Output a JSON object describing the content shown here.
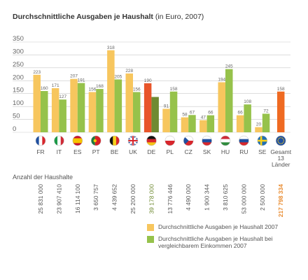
{
  "title": "Durchschnittliche Ausgaben je Haushalt",
  "subtitle": "(in Euro, 2007)",
  "households_label": "Anzahl der Haushalte",
  "colors": {
    "avg": "#f7c65e",
    "comparable": "#96c24b",
    "de_avg": "#e8552a",
    "de_comparable": "#6f8a32",
    "total": "#ef6a22",
    "grid": "#c9c9c9",
    "text": "#555555",
    "de_text": "#6f8a32",
    "total_text": "#e98d33"
  },
  "chart_data": {
    "type": "bar",
    "title": "Durchschnittliche Ausgaben je Haushalt",
    "subtitle": "(in Euro, 2007)",
    "xlabel": "",
    "ylabel": "",
    "ylim": [
      0,
      350
    ],
    "yticks": [
      "0",
      "50",
      "100",
      "150",
      "200",
      "250",
      "300",
      "350"
    ],
    "grid": true,
    "legend_position": "bottom-right",
    "categories": [
      "FR",
      "IT",
      "ES",
      "PT",
      "BE",
      "UK",
      "DE",
      "PL",
      "CZ",
      "SK",
      "HU",
      "RU",
      "SE",
      "Gesamt 13 Länder"
    ],
    "series": [
      {
        "name": "Durchschnittliche Ausgaben je Haushalt 2007",
        "values": [
          223,
          171,
          207,
          156,
          318,
          228,
          190,
          91,
          58,
          47,
          194,
          66,
          20,
          158
        ]
      },
      {
        "name": "Durchschnittliche Ausgaben je Haushalt bei vergleichbarem Einkommen 2007",
        "values": [
          160,
          127,
          191,
          168,
          205,
          156,
          137,
          158,
          67,
          66,
          245,
          108,
          72,
          null
        ]
      }
    ],
    "data_labels_series1": [
      "223",
      "171",
      "207",
      "156",
      "318",
      "228",
      "190",
      "91",
      "58",
      "47",
      "194",
      "66",
      "20",
      "158"
    ],
    "data_labels_series2": [
      "160",
      "127",
      "191",
      "168",
      "205",
      "156",
      "",
      "158",
      "67",
      "66",
      "245",
      "108",
      "72",
      ""
    ],
    "households": [
      "25 831 000",
      "23 907 410",
      "16 114 100",
      "3 650 757",
      "4 439 652",
      "25 200 000",
      "39 178 000",
      "13 776 446",
      "4 490 000",
      "1 900 344",
      "3 810 625",
      "53 000 000",
      "2 500 000",
      "217 798 334"
    ]
  }
}
